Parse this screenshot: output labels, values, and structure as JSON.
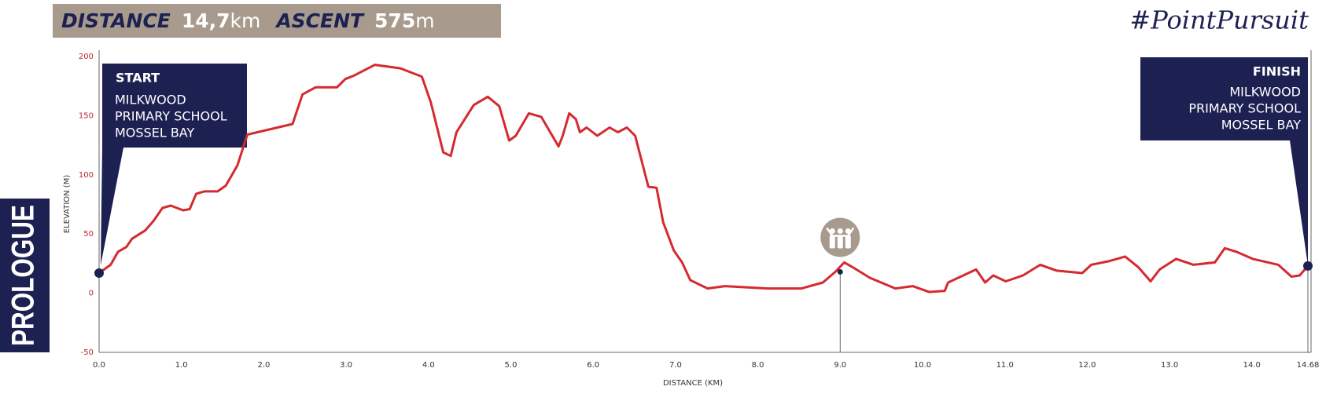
{
  "header": {
    "distance_label": "DISTANCE",
    "distance_value": "14,7",
    "distance_unit": "km",
    "ascent_label": "ASCENT",
    "ascent_value": "575",
    "ascent_unit": "m"
  },
  "hashtag": "#PointPursuit",
  "stage": "PROLOGUE",
  "start": {
    "title": "START",
    "lines": [
      "MILKWOOD",
      "PRIMARY SCHOOL",
      "MOSSEL BAY"
    ]
  },
  "finish": {
    "title": "FINISH",
    "lines": [
      "MILKWOOD",
      "PRIMARY SCHOOL",
      "MOSSEL BAY"
    ]
  },
  "chart_data": {
    "type": "line",
    "x_label": "DISTANCE (KM)",
    "y_label": "ELEVATION (M)",
    "x": [
      0,
      0.14,
      0.23,
      0.33,
      0.4,
      0.56,
      0.66,
      0.77,
      0.87,
      1.02,
      1.1,
      1.18,
      1.28,
      1.44,
      1.54,
      1.68,
      1.8,
      2.35,
      2.47,
      2.63,
      2.89,
      2.99,
      3.1,
      3.35,
      3.66,
      3.92,
      4.03,
      4.18,
      4.27,
      4.34,
      4.44,
      4.55,
      4.72,
      4.86,
      4.98,
      5.06,
      5.22,
      5.37,
      5.58,
      5.63,
      5.71,
      5.79,
      5.84,
      5.92,
      6.05,
      6.2,
      6.3,
      6.41,
      6.51,
      6.67,
      6.77,
      6.85,
      6.98,
      7.08,
      7.18,
      7.39,
      7.6,
      8.12,
      8.53,
      8.79,
      8.94,
      9.05,
      9.15,
      9.36,
      9.67,
      9.88,
      10.08,
      10.27,
      10.31,
      10.65,
      10.76,
      10.86,
      11.01,
      11.22,
      11.43,
      11.63,
      11.94,
      12.05,
      12.26,
      12.46,
      12.62,
      12.77,
      12.88,
      13.08,
      13.29,
      13.55,
      13.67,
      13.81,
      14.01,
      14.32,
      14.48,
      14.58,
      14.68
    ],
    "series": [
      {
        "color": "#d42a30",
        "values": [
          17,
          24,
          35,
          39,
          46,
          53,
          61,
          72,
          74,
          70,
          71,
          84,
          86,
          86,
          91,
          108,
          134,
          143,
          168,
          174,
          174,
          181,
          184,
          193,
          190,
          183,
          161,
          119,
          116,
          136,
          147,
          159,
          166,
          158,
          129,
          133,
          152,
          149,
          124,
          133,
          152,
          147,
          136,
          140,
          133,
          140,
          136,
          140,
          133,
          90,
          89,
          60,
          36,
          26,
          11,
          4,
          6,
          4,
          4,
          9,
          18,
          26,
          22,
          13,
          4,
          6,
          1,
          2,
          9,
          20,
          9,
          15,
          10,
          15,
          24,
          19,
          17,
          24,
          27,
          31,
          22,
          10,
          20,
          29,
          24,
          26,
          38,
          35,
          29,
          24,
          14,
          15,
          23
        ]
      }
    ],
    "xlim": [
      0,
      14.68
    ],
    "ylim": [
      -50,
      200
    ],
    "xticks": [
      {
        "value": 0,
        "label": "0.0"
      },
      {
        "value": 1,
        "label": "1.0"
      },
      {
        "value": 2,
        "label": "2.0"
      },
      {
        "value": 3,
        "label": "3.0"
      },
      {
        "value": 4,
        "label": "4.0"
      },
      {
        "value": 5,
        "label": "5.0"
      },
      {
        "value": 6,
        "label": "6.0"
      },
      {
        "value": 7,
        "label": "7.0"
      },
      {
        "value": 8,
        "label": "8.0"
      },
      {
        "value": 9,
        "label": "9.0"
      },
      {
        "value": 10,
        "label": "10.0"
      },
      {
        "value": 11,
        "label": "11.0"
      },
      {
        "value": 12,
        "label": "12.0"
      },
      {
        "value": 13,
        "label": "13.0"
      },
      {
        "value": 14,
        "label": "14.0"
      },
      14.68
    ],
    "yticks": [
      -50,
      0,
      50,
      100,
      150,
      200
    ],
    "water_station": {
      "x": 9.0,
      "y": 18
    }
  }
}
